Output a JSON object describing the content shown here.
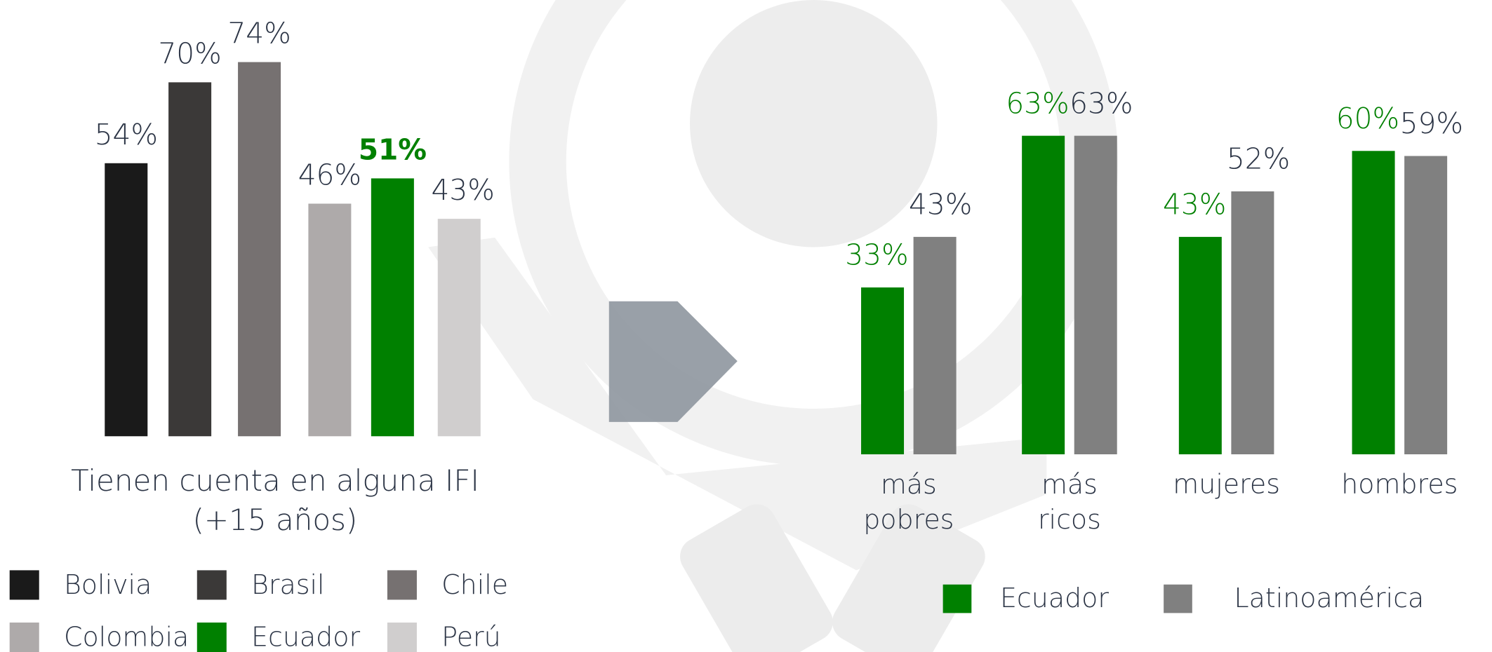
{
  "chart_data": [
    {
      "type": "bar",
      "title": [
        "Tienen cuenta en alguna IFI",
        "(+15 años)"
      ],
      "categories": [
        "Bolivia",
        "Brasil",
        "Chile",
        "Colombia",
        "Ecuador",
        "Perú"
      ],
      "values": [
        54,
        70,
        74,
        46,
        51,
        43
      ],
      "value_labels": [
        "54%",
        "70%",
        "74%",
        "46%",
        "51%",
        "43%"
      ],
      "colors": [
        "#1a1a1a",
        "#3b3938",
        "#767171",
        "#aeaaaa",
        "#008000",
        "#d0cece"
      ],
      "value_label_colors": [
        "#2b3445",
        "#2b3445",
        "#2b3445",
        "#2b3445",
        "#008000",
        "#2b3445"
      ]
    },
    {
      "type": "grouped_bar",
      "categories": [
        "más pobres",
        "más ricos",
        "mujeres",
        "hombres"
      ],
      "series": [
        {
          "name": "Ecuador",
          "color": "#008000",
          "values": [
            33,
            63,
            43,
            60
          ],
          "value_labels": [
            "33%",
            "63%",
            "43%",
            "60%"
          ]
        },
        {
          "name": "Latinoamérica",
          "color": "#808080",
          "values": [
            43,
            63,
            52,
            59
          ],
          "value_labels": [
            "43%",
            "63%",
            "52%",
            "59%"
          ]
        }
      ]
    }
  ]
}
